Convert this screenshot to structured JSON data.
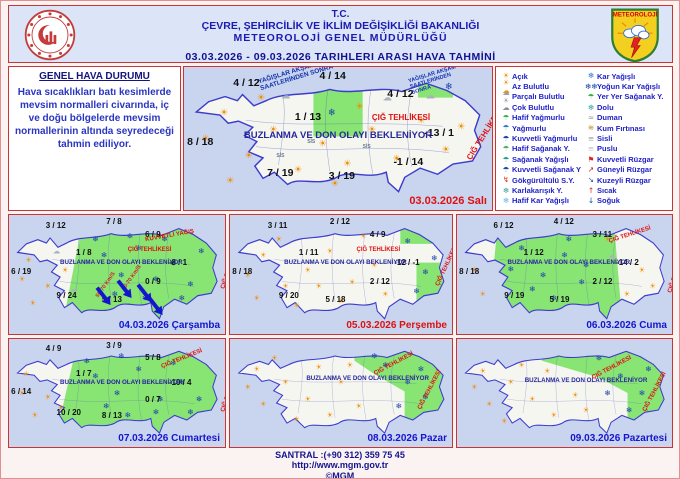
{
  "header": {
    "line1": "T.C.",
    "line2": "ÇEVRE, ŞEHİRCİLİK VE İKLİM DEĞİŞİKLİĞİ BAKANLIĞI",
    "line3": "METEOROLOJİ  GENEL  MÜDÜRLÜĞÜ",
    "date_range": "03.03.2026  -  09.03.2026    TARIHLERI  ARASI  HAVA  TAHMİNİ",
    "logo_text": "METEOROLOJİ"
  },
  "general": {
    "title": "GENEL HAVA DURUMU",
    "body": "Hava sıcaklıkları batı kesimlerde mevsim normalleri civarında, iç ve doğu bölgelerde mevsim normallerinin altında seyredeceği tahmin ediliyor."
  },
  "glyphs": {
    "sun": "☀",
    "cloud": "☁",
    "snow": "❄",
    "fog": "≡"
  },
  "glyph_colors": {
    "sun": "#f08c00",
    "cloud": "#aab2bf",
    "snow": "#1d3fae",
    "fog": "#8a8f98"
  },
  "legend": {
    "left": [
      {
        "label": "Açık",
        "glyph": "☀",
        "color": "#f08c00",
        "icon": "clear-icon"
      },
      {
        "label": "Az Bulutlu",
        "glyph": "☀☁",
        "color": "#e8941a",
        "icon": "few-clouds-icon"
      },
      {
        "label": "Parçalı Bulutlu",
        "glyph": "☁☀",
        "color": "#9aa0a8",
        "icon": "partly-cloudy-icon"
      },
      {
        "label": "Çok Bulutlu",
        "glyph": "☁",
        "color": "#8a8f98",
        "icon": "overcast-icon"
      },
      {
        "label": "Hafif Yağmurlu",
        "glyph": "☂",
        "color": "#3fae49",
        "icon": "light-rain-icon"
      },
      {
        "label": "Yağmurlu",
        "glyph": "☂",
        "color": "#2e7dd1",
        "icon": "rain-icon"
      },
      {
        "label": "Kuvvetli Yağmurlu",
        "glyph": "☂",
        "color": "#1243a8",
        "icon": "heavy-rain-icon"
      },
      {
        "label": "Hafif Sağanak Y.",
        "glyph": "☂",
        "color": "#48b05c",
        "icon": "light-shower-icon"
      },
      {
        "label": "Sağanak Yağışlı",
        "glyph": "☂",
        "color": "#2a9d8f",
        "icon": "shower-icon"
      },
      {
        "label": "Kuvvetli Sağanak Y",
        "glyph": "☂",
        "color": "#184fa0",
        "icon": "heavy-shower-icon"
      },
      {
        "label": "Gökgürültülü S.Y.",
        "glyph": "↯",
        "color": "#e03010",
        "icon": "thunderstorm-icon"
      },
      {
        "label": "Karlakarışık Y.",
        "glyph": "❄",
        "color": "#2aa198",
        "icon": "sleet-icon"
      },
      {
        "label": "Hafif Kar Yağışlı",
        "glyph": "❄",
        "color": "#6ab0e8",
        "icon": "light-snow-icon"
      }
    ],
    "right": [
      {
        "label": "Kar Yağışlı",
        "glyph": "❄",
        "color": "#2b6fd4",
        "icon": "snow-icon"
      },
      {
        "label": "Yoğun Kar Yağışlı",
        "glyph": "❄❄",
        "color": "#1243a8",
        "icon": "heavy-snow-icon"
      },
      {
        "label": "Yer Yer Sağanak Y.",
        "glyph": "☂",
        "color": "#3fae49",
        "icon": "local-shower-icon"
      },
      {
        "label": "Dolu",
        "glyph": "❄",
        "color": "#20a39e",
        "icon": "hail-icon"
      },
      {
        "label": "Duman",
        "glyph": "≈",
        "color": "#8a8f98",
        "icon": "smoke-icon"
      },
      {
        "label": "Kum Fırtınası",
        "glyph": "≋",
        "color": "#b8860b",
        "icon": "sandstorm-icon"
      },
      {
        "label": "Sisli",
        "glyph": "≡",
        "color": "#9a9fa8",
        "icon": "fog-icon"
      },
      {
        "label": "Puslu",
        "glyph": "≡",
        "color": "#bcc0c8",
        "icon": "mist-icon"
      },
      {
        "label": "Kuvvetli Rüzgar",
        "glyph": "⚑",
        "color": "#d22222",
        "icon": "strong-wind-icon"
      },
      {
        "label": "Güneyli Rüzgar",
        "glyph": "↗",
        "color": "#d22222",
        "icon": "southerly-wind-icon"
      },
      {
        "label": "Kuzeyli Rüzgar",
        "glyph": "↘",
        "color": "#1243a8",
        "icon": "northerly-wind-icon"
      },
      {
        "label": "Sıcak",
        "glyph": "↑",
        "color": "#d22222",
        "icon": "hot-icon"
      },
      {
        "label": "Soğuk",
        "glyph": "↓",
        "color": "#1243a8",
        "icon": "cold-icon"
      }
    ]
  },
  "maps": [
    {
      "date": "03.03.2026 Salı",
      "date_color": "#dd1111",
      "warning": "BUZLANMA VE DON OLAYI BEKLENİYOR",
      "note": "YAĞIŞLAR AKŞAM SAATLERİNDEN SONRA",
      "avalanche": "ÇIĞ TEHLİKESİ",
      "fog": "SİS",
      "temps": {
        "tl": "4 / 12",
        "tc": "4 / 14",
        "tr": "4 / 12",
        "ank": "1 / 13",
        "east": "-13 / 1",
        "wl": "8 / 18",
        "bl": "7 / 19",
        "bc": "3 / 19",
        "br": "-1 / 14"
      },
      "icons": [
        [
          "sun",
          7,
          50
        ],
        [
          "sun",
          13,
          32
        ],
        [
          "sun",
          21,
          62
        ],
        [
          "sun",
          29,
          44
        ],
        [
          "sun",
          37,
          72
        ],
        [
          "sun",
          45,
          54
        ],
        [
          "sun",
          53,
          68
        ],
        [
          "sun",
          61,
          44
        ],
        [
          "sun",
          69,
          64
        ],
        [
          "sun",
          77,
          38
        ],
        [
          "sun",
          85,
          58
        ],
        [
          "sun",
          90,
          42
        ],
        [
          "sun",
          15,
          80
        ],
        [
          "sun",
          49,
          82
        ],
        [
          "sun",
          25,
          22
        ],
        [
          "sun",
          57,
          28
        ],
        [
          "cloud",
          33,
          20
        ],
        [
          "cloud",
          66,
          22
        ],
        [
          "cloud",
          80,
          20
        ],
        [
          "snow",
          48,
          32
        ],
        [
          "snow",
          86,
          14
        ]
      ]
    },
    {
      "date": "04.03.2026 Çarşamba",
      "date_color": "#1515cf",
      "warning": "BUZLANMA VE DON OLAYI BEKLENİYOR",
      "storm": "KUVVETLİ YAĞIŞ",
      "avalanche": "ÇIĞ TEHLİKESİ",
      "wind": "50-70 Km/S",
      "temps": {
        "tl": "3 / 12",
        "tc": "7 / 8",
        "tr": "6 / 9",
        "ank": "1 / 8",
        "east": "-8 / 1",
        "wl": "6 / 19",
        "bl": "9 / 24",
        "bc": "5 / 13",
        "cr": "0 / 9"
      },
      "icons": [
        [
          "sun",
          6,
          54
        ],
        [
          "sun",
          11,
          74
        ],
        [
          "sun",
          18,
          60
        ],
        [
          "sun",
          9,
          38
        ],
        [
          "sun",
          26,
          46
        ],
        [
          "cloud",
          30,
          62
        ],
        [
          "cloud",
          22,
          30
        ],
        [
          "snow",
          44,
          34
        ],
        [
          "snow",
          52,
          50
        ],
        [
          "snow",
          60,
          28
        ],
        [
          "snow",
          68,
          54
        ],
        [
          "snow",
          76,
          40
        ],
        [
          "snow",
          84,
          58
        ],
        [
          "snow",
          89,
          30
        ],
        [
          "snow",
          49,
          66
        ],
        [
          "snow",
          63,
          70
        ],
        [
          "snow",
          40,
          20
        ],
        [
          "snow",
          56,
          18
        ],
        [
          "snow",
          72,
          20
        ],
        [
          "snow",
          80,
          70
        ]
      ]
    },
    {
      "date": "05.03.2026 Perşembe",
      "date_color": "#dd1111",
      "warning": "BUZLANMA VE DON OLAYI BEKLENİYOR",
      "avalanche": "ÇIĞ TEHLİKESİ",
      "temps": {
        "tl": "3 / 11",
        "tc": "2 / 12",
        "tr": "4 / 9",
        "ank": "1 / 11",
        "east": "-12 / -1",
        "wl": "8 / 18",
        "bl": "9 / 20",
        "bc": "5 / 18",
        "cr": "2 / 12"
      },
      "icons": [
        [
          "sun",
          8,
          50
        ],
        [
          "sun",
          15,
          34
        ],
        [
          "sun",
          25,
          60
        ],
        [
          "sun",
          35,
          46
        ],
        [
          "sun",
          45,
          30
        ],
        [
          "sun",
          55,
          56
        ],
        [
          "sun",
          65,
          42
        ],
        [
          "sun",
          30,
          76
        ],
        [
          "sun",
          50,
          72
        ],
        [
          "sun",
          70,
          66
        ],
        [
          "sun",
          12,
          70
        ],
        [
          "sun",
          40,
          60
        ],
        [
          "sun",
          60,
          18
        ],
        [
          "sun",
          22,
          20
        ],
        [
          "snow",
          80,
          22
        ],
        [
          "snow",
          88,
          48
        ],
        [
          "snow",
          84,
          64
        ],
        [
          "snow",
          92,
          36
        ]
      ]
    },
    {
      "date": "06.03.2026 Cuma",
      "date_color": "#1515cf",
      "warning": "BUZLANMA VE DON OLAYI BEKLENİYOR",
      "avalanche": "ÇIĞ TEHLİKESİ",
      "temps": {
        "tl": "6 / 12",
        "tc": "4 / 12",
        "tr": "3 / 11",
        "ank": "1 / 12",
        "east": "-14 / 2",
        "wl": "8 / 18",
        "bl": "9 / 19",
        "bc": "5 / 19",
        "cr": "2 / 12"
      },
      "icons": [
        [
          "snow",
          30,
          28
        ],
        [
          "snow",
          40,
          50
        ],
        [
          "snow",
          50,
          34
        ],
        [
          "snow",
          58,
          56
        ],
        [
          "snow",
          45,
          70
        ],
        [
          "snow",
          35,
          62
        ],
        [
          "snow",
          60,
          42
        ],
        [
          "snow",
          52,
          20
        ],
        [
          "snow",
          25,
          45
        ],
        [
          "sun",
          8,
          46
        ],
        [
          "sun",
          12,
          66
        ],
        [
          "sun",
          86,
          46
        ],
        [
          "sun",
          91,
          60
        ],
        [
          "sun",
          79,
          66
        ],
        [
          "sun",
          70,
          20
        ],
        [
          "cloud",
          72,
          34
        ]
      ]
    },
    {
      "date": "07.03.2026 Cumartesi",
      "date_color": "#1515cf",
      "warning": "BUZLANMA VE DON OLAYI BEKLENİYOR",
      "avalanche": "ÇIĞ TEHLİKESİ",
      "temps": {
        "tl": "4 / 9",
        "tc": "3 / 9",
        "tr": "5 / 8",
        "ank": "1 / 7",
        "east": "-10 / 4",
        "wl": "6 / 14",
        "bl": "10 / 20",
        "bc": "8 / 13",
        "cr": "0 / 7"
      },
      "icons": [
        [
          "sun",
          6,
          50
        ],
        [
          "sun",
          12,
          70
        ],
        [
          "sun",
          18,
          54
        ],
        [
          "sun",
          8,
          32
        ],
        [
          "sun",
          24,
          64
        ],
        [
          "snow",
          40,
          34
        ],
        [
          "snow",
          50,
          50
        ],
        [
          "snow",
          60,
          28
        ],
        [
          "snow",
          70,
          56
        ],
        [
          "snow",
          80,
          40
        ],
        [
          "snow",
          88,
          56
        ],
        [
          "snow",
          55,
          70
        ],
        [
          "snow",
          68,
          68
        ],
        [
          "snow",
          45,
          62
        ],
        [
          "snow",
          36,
          20
        ],
        [
          "snow",
          52,
          16
        ],
        [
          "snow",
          76,
          22
        ],
        [
          "snow",
          84,
          68
        ]
      ]
    },
    {
      "date": "08.03.2026 Pazar",
      "date_color": "#1515cf",
      "warning": "BUZLANMA VE DON OLAYI BEKLENİYOR",
      "avalanche": "ÇIĞ TEHLİKESİ",
      "icons": [
        [
          "sun",
          8,
          44
        ],
        [
          "sun",
          15,
          60
        ],
        [
          "sun",
          25,
          40
        ],
        [
          "sun",
          35,
          56
        ],
        [
          "sun",
          45,
          70
        ],
        [
          "sun",
          50,
          40
        ],
        [
          "sun",
          30,
          74
        ],
        [
          "sun",
          12,
          28
        ],
        [
          "sun",
          58,
          62
        ],
        [
          "sun",
          54,
          24
        ],
        [
          "sun",
          20,
          18
        ],
        [
          "sun",
          40,
          26
        ],
        [
          "snow",
          70,
          24
        ],
        [
          "snow",
          80,
          40
        ],
        [
          "snow",
          88,
          54
        ],
        [
          "snow",
          76,
          62
        ],
        [
          "snow",
          86,
          28
        ],
        [
          "snow",
          65,
          16
        ]
      ]
    },
    {
      "date": "09.03.2026 Pazartesi",
      "date_color": "#1515cf",
      "warning": "BUZLANMA VE DON OLAYI BEKLENİYOR",
      "avalanche": "ÇIĞ TEHLİKESİ",
      "icons": [
        [
          "sun",
          8,
          44
        ],
        [
          "sun",
          15,
          60
        ],
        [
          "sun",
          25,
          40
        ],
        [
          "sun",
          35,
          56
        ],
        [
          "sun",
          45,
          70
        ],
        [
          "sun",
          55,
          52
        ],
        [
          "sun",
          30,
          24
        ],
        [
          "sun",
          60,
          66
        ],
        [
          "sun",
          12,
          30
        ],
        [
          "sun",
          42,
          30
        ],
        [
          "sun",
          22,
          76
        ],
        [
          "snow",
          66,
          18
        ],
        [
          "snow",
          76,
          34
        ],
        [
          "snow",
          86,
          50
        ],
        [
          "snow",
          80,
          66
        ],
        [
          "snow",
          89,
          28
        ],
        [
          "snow",
          70,
          50
        ]
      ]
    }
  ],
  "footer": {
    "phone": "SANTRAL :(+90 312) 359 75 45",
    "url": "http://www.mgm.gov.tr",
    "copyright": "©MGM"
  }
}
